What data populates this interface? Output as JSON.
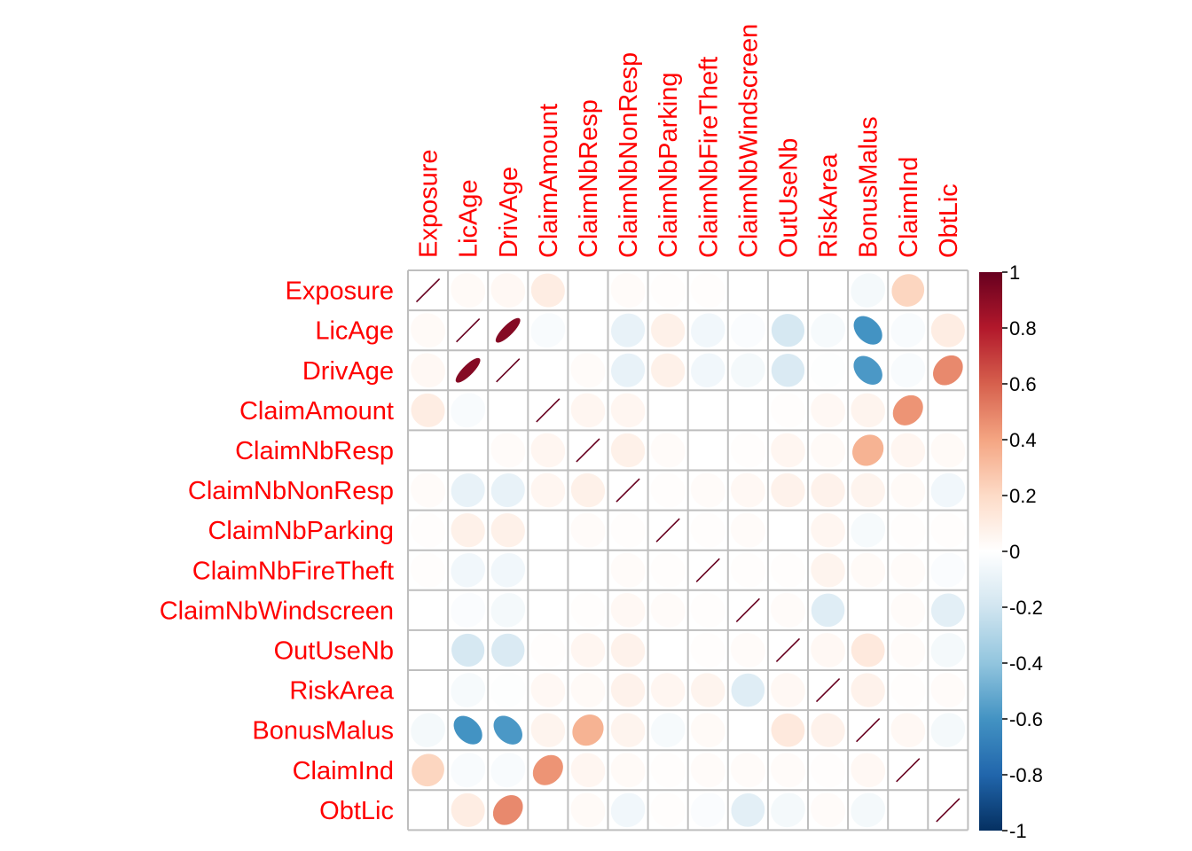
{
  "chart_data": {
    "type": "heatmap",
    "style": "correlation-ellipse",
    "title": "",
    "variables": [
      "Exposure",
      "LicAge",
      "DrivAge",
      "ClaimAmount",
      "ClaimNbResp",
      "ClaimNbNonResp",
      "ClaimNbParking",
      "ClaimNbFireTheft",
      "ClaimNbWindscreen",
      "OutUseNb",
      "RiskArea",
      "BonusMalus",
      "ClaimInd",
      "ObtLic"
    ],
    "matrix": [
      [
        1,
        0.03,
        0.04,
        0.1,
        0,
        0.02,
        0.01,
        0.01,
        0,
        0,
        0,
        -0.05,
        0.22,
        0
      ],
      [
        0.03,
        1,
        0.92,
        -0.03,
        0,
        -0.1,
        0.08,
        -0.06,
        -0.02,
        -0.18,
        -0.04,
        -0.6,
        -0.03,
        0.1
      ],
      [
        0.04,
        0.92,
        1,
        0,
        0.02,
        -0.1,
        0.08,
        -0.06,
        -0.05,
        -0.16,
        -0.01,
        -0.58,
        -0.03,
        0.48
      ],
      [
        0.1,
        -0.03,
        0,
        1,
        0.05,
        0.05,
        0,
        0,
        0,
        0.01,
        0.04,
        0.06,
        0.45,
        0
      ],
      [
        0,
        0,
        0.02,
        0.05,
        1,
        0.08,
        0.02,
        0,
        0.01,
        0.05,
        0.03,
        0.35,
        0.05,
        0.03
      ],
      [
        0.02,
        -0.1,
        -0.1,
        0.05,
        0.08,
        1,
        0.01,
        0.02,
        0.04,
        0.07,
        0.07,
        0.06,
        0.03,
        -0.06
      ],
      [
        0.01,
        0.08,
        0.08,
        0,
        0.02,
        0.01,
        1,
        0.01,
        0.02,
        0,
        0.05,
        -0.04,
        0.01,
        0.01
      ],
      [
        0.01,
        -0.06,
        -0.06,
        0,
        0,
        0.02,
        0.01,
        1,
        0.01,
        0.01,
        0.06,
        0.03,
        0.02,
        -0.02
      ],
      [
        0,
        -0.02,
        -0.05,
        0,
        0.01,
        0.04,
        0.02,
        0.01,
        1,
        0.02,
        -0.14,
        0,
        0.02,
        -0.12
      ],
      [
        0,
        -0.18,
        -0.16,
        0.01,
        0.05,
        0.07,
        0,
        0.01,
        0.02,
        1,
        0.04,
        0.12,
        0.02,
        -0.05
      ],
      [
        0,
        -0.04,
        -0.01,
        0.04,
        0.03,
        0.07,
        0.05,
        0.06,
        -0.14,
        0.04,
        1,
        0.07,
        0.01,
        0.02
      ],
      [
        -0.05,
        -0.6,
        -0.58,
        0.06,
        0.35,
        0.06,
        -0.04,
        0.03,
        0,
        0.12,
        0.07,
        1,
        0.04,
        -0.05
      ],
      [
        0.22,
        -0.03,
        -0.03,
        0.45,
        0.05,
        0.03,
        0.01,
        0.02,
        0.02,
        0.02,
        0.01,
        0.04,
        1,
        0
      ],
      [
        0,
        0.1,
        0.48,
        0,
        0.03,
        -0.06,
        0.01,
        -0.02,
        -0.12,
        -0.05,
        0.02,
        -0.05,
        0,
        1
      ]
    ],
    "colorbar": {
      "range": [
        -1,
        1
      ],
      "ticks": [
        "1",
        "0.8",
        "0.6",
        "0.4",
        "0.2",
        "0",
        "-0.2",
        "-0.4",
        "-0.6",
        "-0.8",
        "-1"
      ],
      "colors": [
        "#67001F",
        "#B2182B",
        "#D6604D",
        "#F4A582",
        "#FDDBC7",
        "#FFFFFF",
        "#D1E5F0",
        "#92C5DE",
        "#4393C3",
        "#2166AC",
        "#053061"
      ]
    },
    "label_color": "#FF0000",
    "grid_color": "#BEBEBE",
    "grid": true
  }
}
